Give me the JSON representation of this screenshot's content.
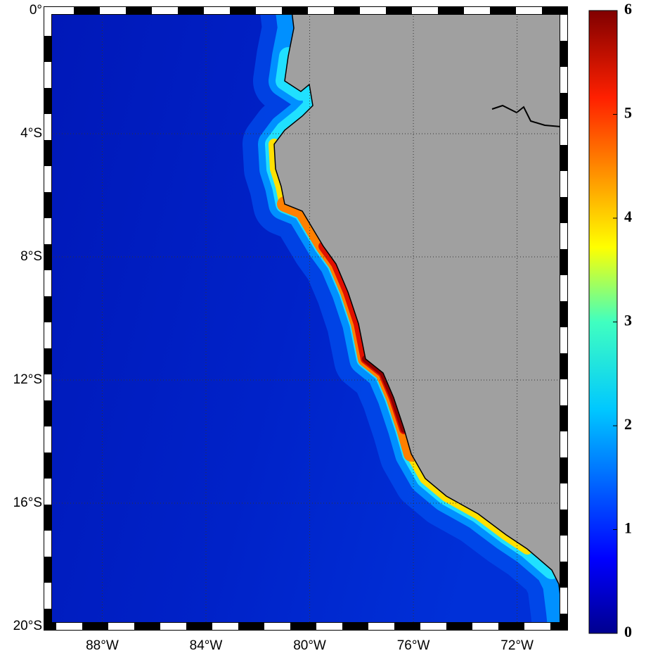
{
  "map": {
    "lon_lim": [
      -90.1,
      -70.2
    ],
    "lat_lim": [
      -20,
      0
    ],
    "lon_ticks": [
      {
        "value": -88,
        "label": "88°W"
      },
      {
        "value": -84,
        "label": "84°W"
      },
      {
        "value": -80,
        "label": "80°W"
      },
      {
        "value": -76,
        "label": "76°W"
      },
      {
        "value": -72,
        "label": "72°W"
      }
    ],
    "lat_ticks": [
      {
        "value": 0,
        "label": "0°"
      },
      {
        "value": -4,
        "label": "4°S"
      },
      {
        "value": -8,
        "label": "8°S"
      },
      {
        "value": -12,
        "label": "12°S"
      },
      {
        "value": -16,
        "label": "16°S"
      },
      {
        "value": -20,
        "label": "20°S"
      }
    ],
    "colorbar": {
      "lim": [
        0,
        6
      ],
      "ticks": [
        0,
        1,
        2,
        3,
        4,
        5,
        6
      ]
    }
  }
}
